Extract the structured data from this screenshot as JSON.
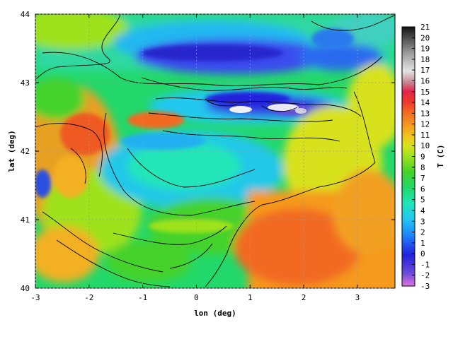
{
  "map": {
    "xlabel": "lon (deg)",
    "ylabel": "lat (deg)",
    "colorbar_label": "T (C)",
    "x_ticks": [
      "-3",
      "-2",
      "-1",
      "0",
      "1",
      "2",
      "3"
    ],
    "y_ticks": [
      "40",
      "41",
      "42",
      "43",
      "44"
    ],
    "colorbar_ticks": [
      "21",
      "20",
      "19",
      "18",
      "17",
      "16",
      "15",
      "14",
      "13",
      "12",
      "11",
      "10",
      "9",
      "8",
      "7",
      "6",
      "5",
      "4",
      "3",
      "2",
      "1",
      "0",
      "-1",
      "-2",
      "-3"
    ],
    "xlim": [
      -3,
      3.7
    ],
    "ylim": [
      40,
      44
    ],
    "clim": [
      -3,
      21
    ],
    "grid": true,
    "colormap": [
      "#e070e0",
      "#6a4bd8",
      "#2222dd",
      "#1e88ff",
      "#22c8f0",
      "#20e6b8",
      "#22d86a",
      "#44d22a",
      "#9ee21e",
      "#d8e21a",
      "#f0c41c",
      "#f59a1e",
      "#f26a24",
      "#ee3a2e",
      "#e02446",
      "#c8909c",
      "#e4e4e4",
      "#9a9a9a",
      "#4a4a4a",
      "#111111"
    ]
  }
}
